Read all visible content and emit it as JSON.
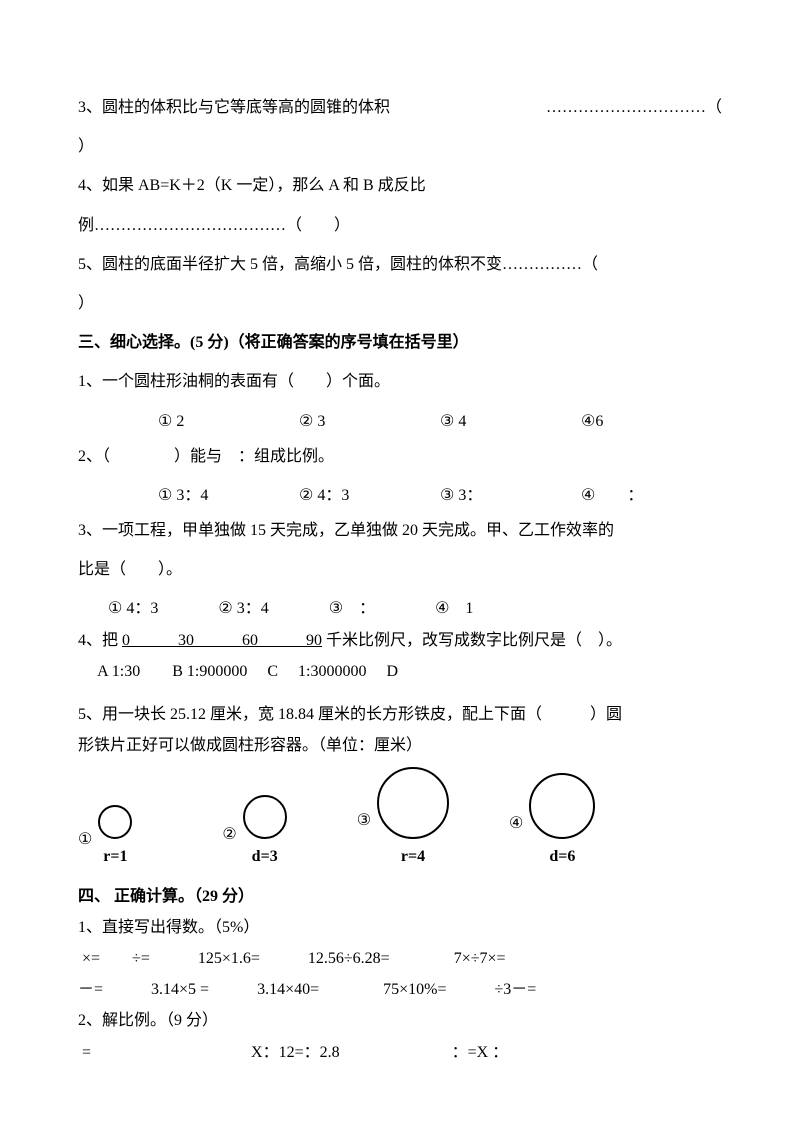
{
  "q3": {
    "text": "3、圆柱的体积比与它等底等高的圆锥的体积",
    "dots": "…………………………（",
    "close": "）"
  },
  "q4": {
    "line1": "4、如果 AB=K＋2（K 一定），那么 A 和 B 成反比",
    "line2": "例………………………………（　　）"
  },
  "q5": {
    "text": "5、圆柱的底面半径扩大 5 倍，高缩小 5 倍，圆柱的体积不变……………（",
    "close": "）"
  },
  "section3": {
    "title": "三、细心选择。(5 分)（将正确答案的序号填在括号里）",
    "q1": {
      "text": "1、一个圆柱形油桐的表面有（　　）个面。",
      "c1": "① 2",
      "c2": "② 3",
      "c3": "③ 4",
      "c4": "④6"
    },
    "q2": {
      "text": "2、（　　　　）能与　：组成比例。",
      "c1": "① 3：4",
      "c2": "② 4：3",
      "c3": "③ 3：",
      "c4": "④　　："
    },
    "q3": {
      "l1": "3、一项工程，甲单独做 15 天完成，乙单独做 20 天完成。甲、乙工作效率的",
      "l2": "比是（　　）。",
      "c1": "① 4：3",
      "c2": "② 3：4",
      "c3": "③　：",
      "c4": "④　1"
    },
    "q4": {
      "pre": "4、把 ",
      "scale": "0　　　30　　　60　　　90",
      "post": " 千米比例尺，改写成数字比例尺是（　）。",
      "c": "　 A 1:30　　B 1:900000　 C　 1:3000000　 D"
    },
    "q5": {
      "l1": "5、用一块长 25.12 厘米，宽 18.84 厘米的长方形铁皮，配上下面（　　　）圆",
      "l2": "形铁片正好可以做成圆柱形容器。（单位：厘米）"
    }
  },
  "circles": {
    "o1": {
      "num": "①",
      "label": "r=1",
      "size": 34
    },
    "o2": {
      "num": "②",
      "label": "d=3",
      "size": 44
    },
    "o3": {
      "num": "③",
      "label": "r=4",
      "size": 72
    },
    "o4": {
      "num": "④",
      "label": "d=6",
      "size": 66
    }
  },
  "section4": {
    "title": "四、 正确计算。（29 分）",
    "q1": {
      "h": "1、直接写出得数。（5%）",
      "l1": " ×=　　÷=　　　125×1.6=　　　12.56÷6.28=　　　　7×÷7×=",
      "l2": "－=　　　3.14×5 =　　　3.14×40=　　　　75×10%=　　　÷3－="
    },
    "q2": {
      "h": "2、解比例。（9 分）",
      "l": " =　　　　　　　　　　X：12=：2.8　　　　　　　：=X ："
    }
  },
  "colors": {
    "text": "#000000",
    "bg": "#ffffff"
  }
}
